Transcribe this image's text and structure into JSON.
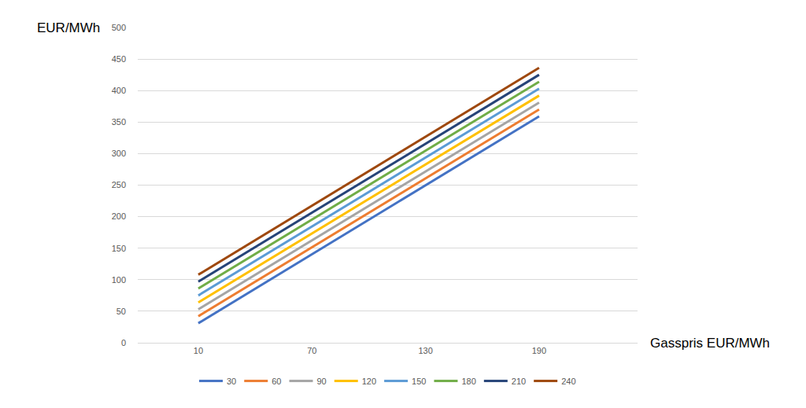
{
  "chart_data": {
    "type": "line",
    "x_label": "Gasspris EUR/MWh",
    "y_label": "EUR/MWh",
    "x": [
      10,
      190
    ],
    "series": [
      {
        "name": "30",
        "color": "#4472c4",
        "values": [
          31,
          359
        ]
      },
      {
        "name": "60",
        "color": "#ed7d31",
        "values": [
          42,
          370
        ]
      },
      {
        "name": "90",
        "color": "#a5a5a5",
        "values": [
          53,
          381
        ]
      },
      {
        "name": "120",
        "color": "#ffc000",
        "values": [
          64,
          392
        ]
      },
      {
        "name": "150",
        "color": "#5b9bd5",
        "values": [
          75,
          403
        ]
      },
      {
        "name": "180",
        "color": "#70ad47",
        "values": [
          86,
          414
        ]
      },
      {
        "name": "210",
        "color": "#264478",
        "values": [
          97,
          425
        ]
      },
      {
        "name": "240",
        "color": "#9e480e",
        "values": [
          108,
          436
        ]
      }
    ],
    "xlim": [
      -22,
      242
    ],
    "xticks": [
      10,
      70,
      130,
      190
    ],
    "ylim": [
      0,
      500
    ],
    "yticks": [
      0,
      50,
      100,
      150,
      200,
      250,
      300,
      350,
      400,
      450,
      500
    ],
    "grid": true,
    "legend": "bottom"
  }
}
